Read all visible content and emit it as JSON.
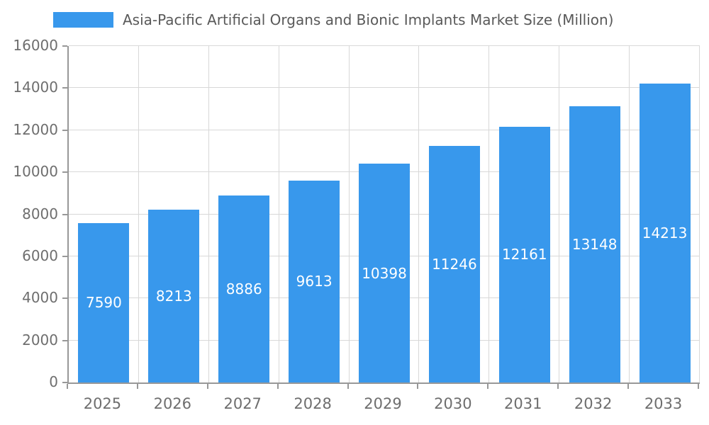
{
  "chart_data": {
    "type": "bar",
    "title": "Asia-Pacific Artificial Organs and Bionic Implants Market Size (Million)",
    "categories": [
      "2025",
      "2026",
      "2027",
      "2028",
      "2029",
      "2030",
      "2031",
      "2032",
      "2033"
    ],
    "values": [
      7590,
      8213,
      8886,
      9613,
      10398,
      11246,
      12161,
      13148,
      14213
    ],
    "xlabel": "",
    "ylabel": "",
    "ylim": [
      0,
      16000
    ],
    "ytick_step": 2000,
    "grid": true,
    "legend_position": "top",
    "bar_color": "#3898EC",
    "bar_label_color": "#ffffff",
    "title_color": "#595959",
    "axis_text_color": "#6e6e6e",
    "gridline_color": "#d8d8d8",
    "axis_line_color": "#989898"
  }
}
